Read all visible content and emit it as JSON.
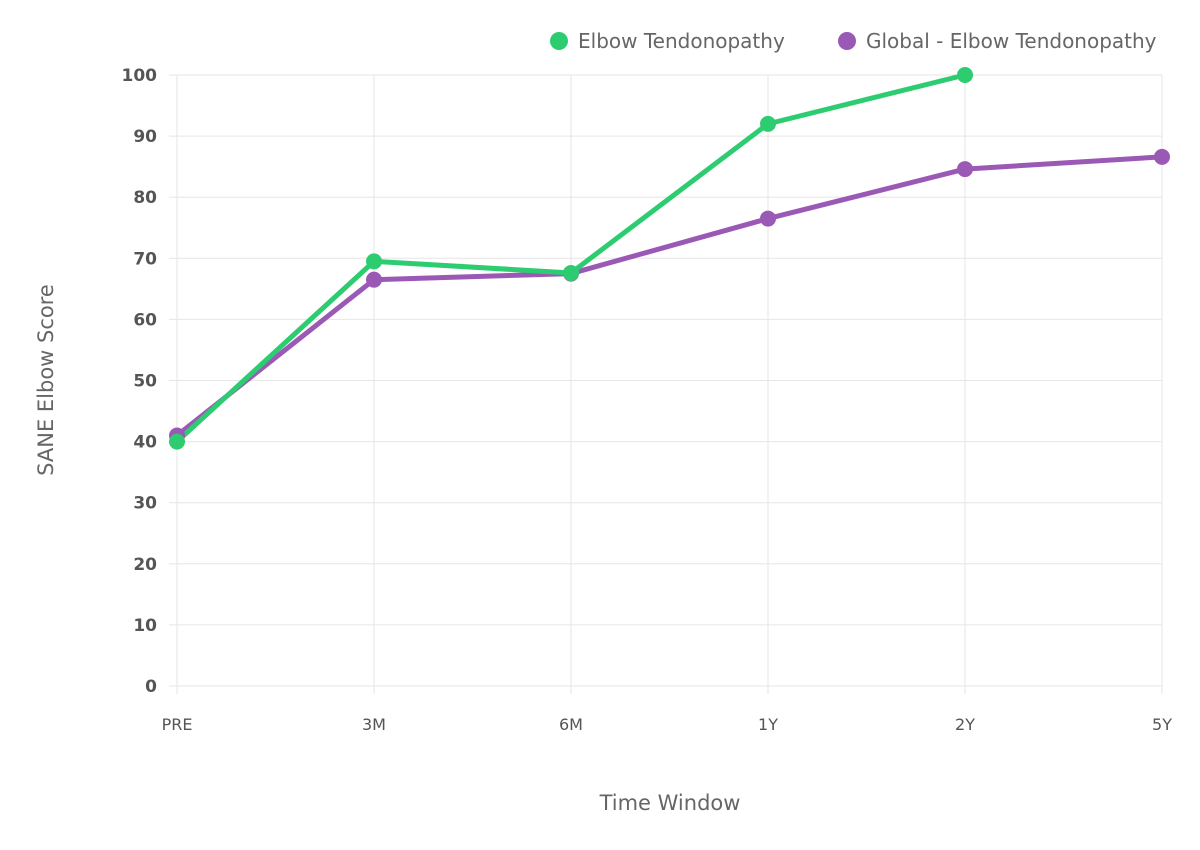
{
  "chart_data": {
    "type": "line",
    "title": "",
    "xlabel": "Time Window",
    "ylabel": "SANE Elbow Score",
    "categories": [
      "PRE",
      "3M",
      "6M",
      "1Y",
      "2Y",
      "5Y"
    ],
    "ylim": [
      0,
      100
    ],
    "yticks": [
      0,
      10,
      20,
      30,
      40,
      50,
      60,
      70,
      80,
      90,
      100
    ],
    "grid": true,
    "legend_position": "top-right",
    "series": [
      {
        "name": "Elbow Tendonopathy",
        "color": "#2ecc71",
        "values": [
          40,
          69.5,
          67.6,
          92,
          100,
          null
        ]
      },
      {
        "name": "Global - Elbow Tendonopathy",
        "color": "#9b59b6",
        "values": [
          41,
          66.5,
          67.5,
          76.5,
          84.6,
          86.6
        ]
      }
    ]
  }
}
